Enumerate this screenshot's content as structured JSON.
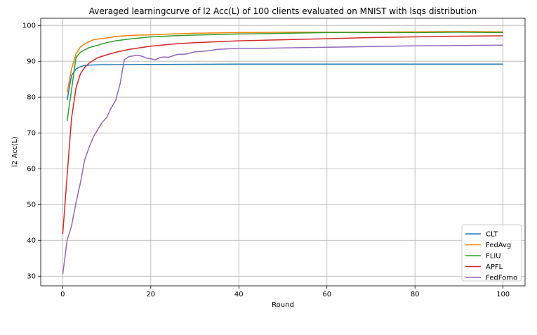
{
  "chart_data": {
    "type": "line",
    "title": "Averaged learningcurve of l2 Acc(L) of 100 clients evaluated on MNIST with lsqs distribution",
    "xlabel": "Round",
    "ylabel": "l2 Acc(L)",
    "xlim": [
      -5,
      105
    ],
    "ylim": [
      27.3,
      102
    ],
    "xticks": [
      0,
      20,
      40,
      60,
      80,
      100
    ],
    "yticks": [
      30,
      40,
      50,
      60,
      70,
      80,
      90,
      100
    ],
    "grid": true,
    "legend": "bottom-right",
    "series": [
      {
        "name": "CLT",
        "color": "#1f77b4",
        "x": [
          1,
          2,
          3,
          4,
          5,
          6,
          8,
          20,
          40,
          60,
          80,
          100
        ],
        "y": [
          79.2,
          86,
          87.8,
          88.5,
          88.8,
          88.9,
          89,
          89.1,
          89.2,
          89.2,
          89.2,
          89.2
        ]
      },
      {
        "name": "FedAvg",
        "color": "#ff7f0e",
        "x": [
          1,
          2,
          3,
          4,
          5,
          6,
          7,
          8,
          10,
          12,
          15,
          20,
          25,
          30,
          40,
          50,
          60,
          70,
          80,
          90,
          100
        ],
        "y": [
          81.3,
          87.8,
          92,
          94,
          94.8,
          95.5,
          96,
          96.2,
          96.5,
          96.9,
          97.2,
          97.4,
          97.6,
          97.8,
          98,
          98.1,
          98.1,
          98.1,
          98.2,
          98.3,
          98.2
        ]
      },
      {
        "name": "FLIU",
        "color": "#2ca02c",
        "x": [
          1,
          2,
          3,
          4,
          5,
          6,
          8,
          10,
          12,
          15,
          20,
          25,
          30,
          40,
          50,
          60,
          70,
          80,
          90,
          100
        ],
        "y": [
          73.3,
          82,
          91,
          92.5,
          93.2,
          93.8,
          94.5,
          95.2,
          95.7,
          96.2,
          96.8,
          97.1,
          97.3,
          97.6,
          97.8,
          98,
          98,
          98,
          98.1,
          98
        ]
      },
      {
        "name": "APFL",
        "color": "#d62728",
        "x": [
          0,
          1,
          2,
          3,
          4,
          5,
          6,
          7,
          8,
          10,
          12,
          15,
          20,
          25,
          30,
          40,
          50,
          60,
          70,
          80,
          90,
          100
        ],
        "y": [
          41.8,
          58,
          74,
          82.5,
          86.5,
          88.3,
          89.5,
          90.3,
          91,
          91.8,
          92.5,
          93.3,
          94.2,
          94.8,
          95.2,
          95.7,
          96,
          96.3,
          96.6,
          96.8,
          97,
          97.1
        ]
      },
      {
        "name": "FedFomo",
        "color": "#9467bd",
        "x": [
          0,
          1,
          2,
          3,
          4,
          5,
          6,
          7,
          8,
          9,
          10,
          11,
          12,
          13,
          14,
          15,
          16,
          17,
          18,
          19,
          20,
          21,
          22,
          23,
          24,
          25,
          26,
          28,
          30,
          33,
          35,
          38,
          40,
          45,
          50,
          60,
          70,
          80,
          90,
          100
        ],
        "y": [
          30.5,
          40,
          44,
          50.5,
          56,
          62.5,
          66,
          69,
          71,
          73,
          74.3,
          77,
          79,
          83.5,
          90.5,
          91.3,
          91.5,
          91.7,
          91.4,
          90.9,
          90.7,
          90.4,
          91,
          91.2,
          91.1,
          91.5,
          91.9,
          92,
          92.6,
          92.9,
          93.3,
          93.5,
          93.6,
          93.6,
          93.7,
          93.9,
          94.1,
          94.3,
          94.4,
          94.5
        ]
      }
    ]
  }
}
